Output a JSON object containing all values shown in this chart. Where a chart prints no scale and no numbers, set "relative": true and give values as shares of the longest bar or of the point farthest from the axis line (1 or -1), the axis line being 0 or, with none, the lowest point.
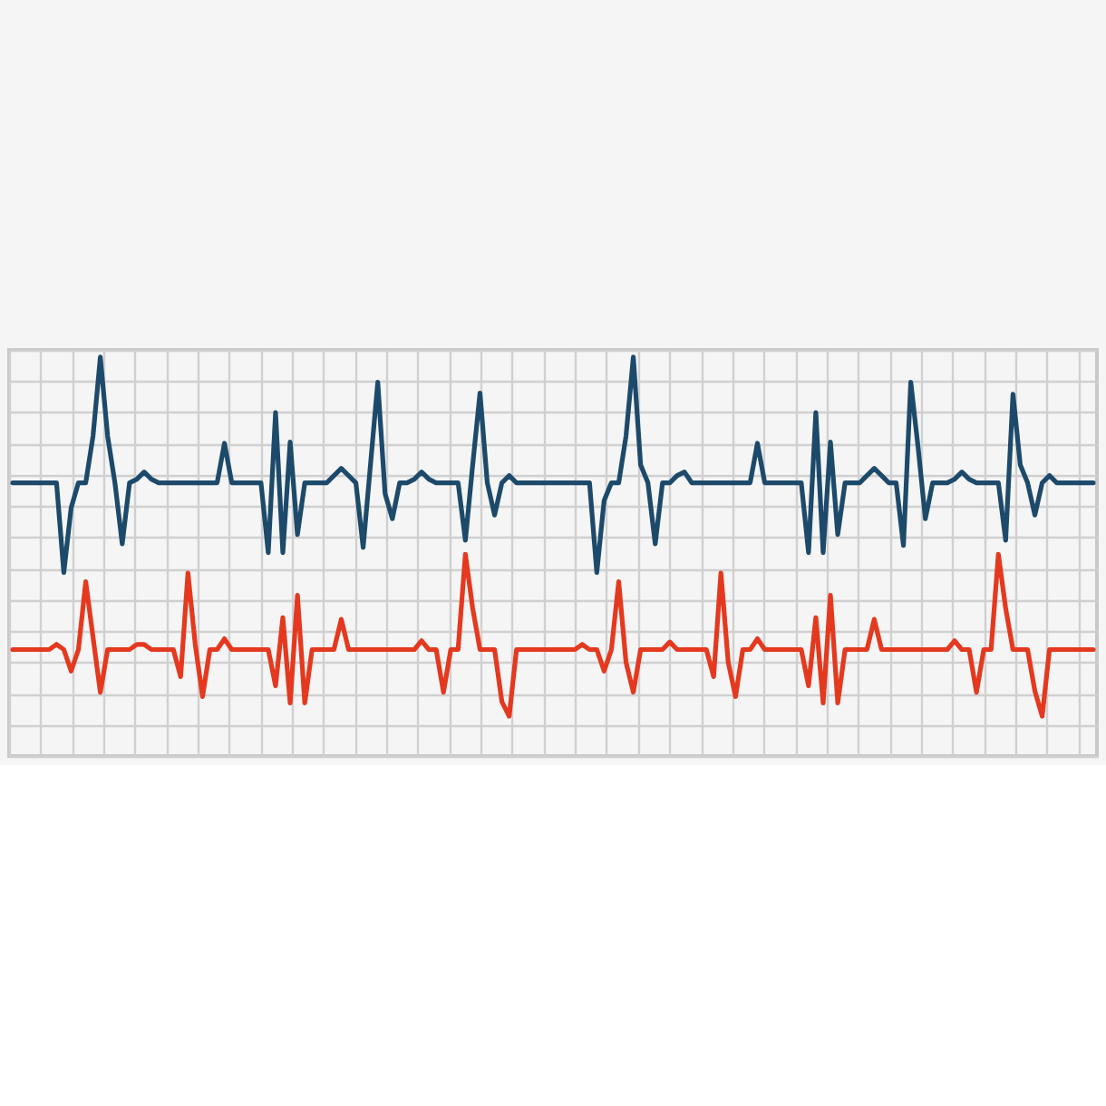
{
  "chart_data": {
    "type": "line",
    "relative": true,
    "grid": true,
    "legend": false,
    "marker": "none",
    "line_style": "solid",
    "tick_labels": false,
    "categories": [
      null,
      null,
      null,
      null,
      null,
      null,
      null,
      null,
      null,
      null,
      null,
      null,
      null,
      null,
      null,
      null,
      null,
      null,
      null,
      null,
      null,
      null,
      null,
      null,
      null,
      null,
      null,
      null,
      null,
      null,
      null,
      null,
      null,
      null,
      null,
      null,
      null,
      null,
      null,
      null,
      null,
      null,
      null,
      null,
      null,
      null,
      null,
      null,
      null,
      null,
      null,
      null,
      null,
      null,
      null,
      null,
      null,
      null,
      null,
      null,
      null,
      null,
      null,
      null,
      null,
      null,
      null,
      null,
      null,
      null,
      null,
      null,
      null,
      null,
      null,
      null,
      null,
      null,
      null,
      null,
      null,
      null,
      null,
      null,
      null,
      null,
      null,
      null,
      null,
      null,
      null,
      null,
      null,
      null,
      null,
      null,
      null,
      null,
      null,
      null,
      null,
      null,
      null,
      null,
      null,
      null,
      null,
      null,
      null,
      null,
      null,
      null,
      null,
      null,
      null,
      null,
      null,
      null,
      null,
      null,
      null,
      null,
      null,
      null,
      null,
      null,
      null,
      null,
      null,
      null,
      null,
      null,
      null,
      null,
      null,
      null,
      null,
      null,
      null,
      null,
      null,
      null,
      null,
      null,
      null,
      null,
      null,
      null,
      null
    ],
    "series": [
      {
        "color": "#1d4a6b",
        "values": [
          0.685,
          0.685,
          0.685,
          0.685,
          0.685,
          0.685,
          0.685,
          0.46,
          0.622,
          0.685,
          0.685,
          0.802,
          1.0,
          0.802,
          0.685,
          0.532,
          0.685,
          0.694,
          0.712,
          0.694,
          0.685,
          0.685,
          0.685,
          0.685,
          0.685,
          0.685,
          0.685,
          0.685,
          0.685,
          0.784,
          0.685,
          0.685,
          0.685,
          0.685,
          0.685,
          0.51,
          0.861,
          0.51,
          0.787,
          0.555,
          0.685,
          0.685,
          0.685,
          0.685,
          0.703,
          0.721,
          0.703,
          0.685,
          0.523,
          0.73,
          0.937,
          0.658,
          0.595,
          0.685,
          0.685,
          0.694,
          0.712,
          0.694,
          0.685,
          0.685,
          0.685,
          0.685,
          0.541,
          0.73,
          0.91,
          0.685,
          0.604,
          0.685,
          0.703,
          0.685,
          0.685,
          0.685,
          0.685,
          0.685,
          0.685,
          0.685,
          0.685,
          0.685,
          0.685,
          0.685,
          0.46,
          0.64,
          0.685,
          0.685,
          0.802,
          1.0,
          0.73,
          0.685,
          0.532,
          0.685,
          0.685,
          0.703,
          0.712,
          0.685,
          0.685,
          0.685,
          0.685,
          0.685,
          0.685,
          0.685,
          0.685,
          0.685,
          0.784,
          0.685,
          0.685,
          0.685,
          0.685,
          0.685,
          0.685,
          0.51,
          0.861,
          0.51,
          0.787,
          0.555,
          0.685,
          0.685,
          0.685,
          0.703,
          0.721,
          0.703,
          0.685,
          0.685,
          0.528,
          0.937,
          0.775,
          0.595,
          0.685,
          0.685,
          0.685,
          0.694,
          0.712,
          0.694,
          0.685,
          0.685,
          0.685,
          0.685,
          0.541,
          0.907,
          0.73,
          0.685,
          0.604,
          0.685,
          0.703,
          0.685,
          0.685,
          0.685,
          0.685,
          0.685,
          0.685
        ]
      },
      {
        "color": "#e5391f",
        "values": [
          0.267,
          0.267,
          0.267,
          0.267,
          0.267,
          0.267,
          0.28,
          0.267,
          0.213,
          0.267,
          0.437,
          0.298,
          0.16,
          0.267,
          0.267,
          0.267,
          0.267,
          0.28,
          0.28,
          0.267,
          0.267,
          0.267,
          0.267,
          0.199,
          0.459,
          0.28,
          0.149,
          0.267,
          0.267,
          0.294,
          0.267,
          0.267,
          0.267,
          0.267,
          0.267,
          0.267,
          0.176,
          0.347,
          0.133,
          0.403,
          0.133,
          0.267,
          0.267,
          0.267,
          0.267,
          0.343,
          0.267,
          0.267,
          0.267,
          0.267,
          0.267,
          0.267,
          0.267,
          0.267,
          0.267,
          0.267,
          0.289,
          0.267,
          0.267,
          0.16,
          0.267,
          0.267,
          0.506,
          0.37,
          0.267,
          0.267,
          0.267,
          0.136,
          0.1,
          0.267,
          0.267,
          0.267,
          0.267,
          0.267,
          0.267,
          0.267,
          0.267,
          0.267,
          0.28,
          0.267,
          0.267,
          0.213,
          0.267,
          0.437,
          0.235,
          0.16,
          0.267,
          0.267,
          0.267,
          0.267,
          0.286,
          0.267,
          0.267,
          0.267,
          0.267,
          0.267,
          0.199,
          0.459,
          0.235,
          0.149,
          0.267,
          0.267,
          0.294,
          0.267,
          0.267,
          0.267,
          0.267,
          0.267,
          0.267,
          0.176,
          0.347,
          0.133,
          0.403,
          0.133,
          0.267,
          0.267,
          0.267,
          0.267,
          0.343,
          0.267,
          0.267,
          0.267,
          0.267,
          0.267,
          0.267,
          0.267,
          0.267,
          0.267,
          0.267,
          0.289,
          0.267,
          0.267,
          0.16,
          0.267,
          0.267,
          0.506,
          0.37,
          0.267,
          0.267,
          0.267,
          0.163,
          0.1,
          0.267,
          0.267,
          0.267,
          0.267,
          0.267,
          0.267,
          0.267
        ]
      }
    ]
  }
}
